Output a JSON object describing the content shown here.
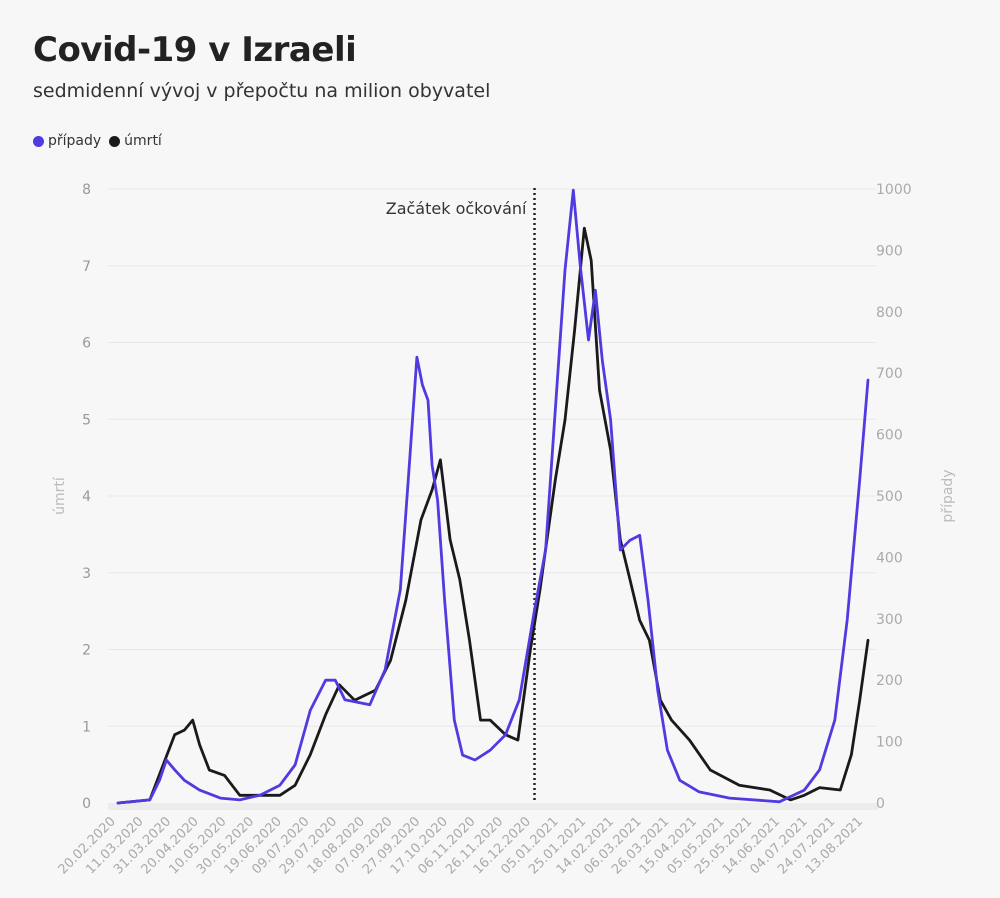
{
  "title": "Covid-19 v Izraeli",
  "subtitle": "sedmidenní vývoj v přepočtu na milion obyvatel",
  "legend": [
    {
      "label": "případy",
      "color": "#4f3be0"
    },
    {
      "label": "úmrtí",
      "color": "#1a1a1a"
    }
  ],
  "chart_data": {
    "type": "line",
    "title": "Covid-19 v Izraeli",
    "subtitle": "sedmidenní vývoj v přepočtu na milion obyvatel",
    "ylabel_left": "úmrtí",
    "ylabel_right": "případy",
    "ylim_left": [
      0,
      8
    ],
    "ylim_right": [
      0,
      1000
    ],
    "yticks_left": [
      "0",
      "1",
      "2",
      "3",
      "4",
      "5",
      "6",
      "7",
      "8"
    ],
    "yticks_right": [
      "0",
      "100",
      "200",
      "300",
      "400",
      "500",
      "600",
      "700",
      "800",
      "900",
      "1000"
    ],
    "xlim": [
      "2020-02-20",
      "2021-08-15"
    ],
    "xticks": [
      "20.02.2020",
      "11.03.2020",
      "31.03.2020",
      "20.04.2020",
      "10.05.2020",
      "30.05.2020",
      "19.06.2020",
      "09.07.2020",
      "29.07.2020",
      "18.08.2020",
      "07.09.2020",
      "27.09.2020",
      "17.10.2020",
      "06.11.2020",
      "26.11.2020",
      "16.12.2020",
      "05.01.2021",
      "25.01.2021",
      "14.02.2021",
      "06.03.2021",
      "26.03.2021",
      "15.04.2021",
      "05.05.2021",
      "25.05.2021",
      "14.06.2021",
      "04.07.2021",
      "24.07.2021",
      "13.08.2021"
    ],
    "grid": true,
    "legend_position": "top-left",
    "annotation": {
      "label": "Začátek očkování",
      "date": "2020-12-17"
    },
    "series": [
      {
        "name": "případy",
        "axis": "right",
        "color": "#4f3be0",
        "x": [
          "2020-02-20",
          "2020-03-14",
          "2020-03-21",
          "2020-03-26",
          "2020-04-01",
          "2020-04-08",
          "2020-04-19",
          "2020-05-04",
          "2020-05-18",
          "2020-06-02",
          "2020-06-16",
          "2020-06-27",
          "2020-07-08",
          "2020-07-19",
          "2020-07-26",
          "2020-08-02",
          "2020-08-20",
          "2020-08-31",
          "2020-09-11",
          "2020-09-17",
          "2020-09-23",
          "2020-09-27",
          "2020-10-01",
          "2020-10-04",
          "2020-10-08",
          "2020-10-13",
          "2020-10-20",
          "2020-10-26",
          "2020-11-04",
          "2020-11-15",
          "2020-11-26",
          "2020-12-06",
          "2020-12-17",
          "2020-12-25",
          "2021-01-01",
          "2021-01-08",
          "2021-01-14",
          "2021-01-19",
          "2021-01-25",
          "2021-01-30",
          "2021-02-04",
          "2021-02-10",
          "2021-02-17",
          "2021-02-24",
          "2021-03-03",
          "2021-03-09",
          "2021-03-16",
          "2021-03-23",
          "2021-04-01",
          "2021-04-15",
          "2021-05-07",
          "2021-06-12",
          "2021-06-30",
          "2021-07-11",
          "2021-07-22",
          "2021-07-31",
          "2021-08-09",
          "2021-08-15"
        ],
        "y": [
          0,
          5,
          37,
          70,
          54,
          37,
          21,
          8,
          5,
          13,
          29,
          62,
          151,
          200,
          200,
          168,
          160,
          217,
          347,
          534,
          726,
          681,
          656,
          550,
          493,
          331,
          135,
          78,
          70,
          86,
          111,
          168,
          314,
          412,
          640,
          868,
          998,
          876,
          754,
          835,
          721,
          624,
          412,
          428,
          436,
          331,
          184,
          86,
          37,
          18,
          8,
          2,
          21,
          54,
          135,
          298,
          526,
          689
        ]
      },
      {
        "name": "úmrtí",
        "axis": "left",
        "color": "#1a1a1a",
        "x": [
          "2020-02-20",
          "2020-03-14",
          "2020-03-25",
          "2020-04-01",
          "2020-04-08",
          "2020-04-14",
          "2020-04-19",
          "2020-04-26",
          "2020-05-07",
          "2020-05-18",
          "2020-06-02",
          "2020-06-16",
          "2020-06-27",
          "2020-07-08",
          "2020-07-19",
          "2020-07-29",
          "2020-08-09",
          "2020-08-24",
          "2020-09-04",
          "2020-09-15",
          "2020-09-26",
          "2020-10-04",
          "2020-10-10",
          "2020-10-17",
          "2020-10-24",
          "2020-10-31",
          "2020-11-08",
          "2020-11-15",
          "2020-11-26",
          "2020-12-05",
          "2020-12-14",
          "2020-12-21",
          "2021-01-01",
          "2021-01-08",
          "2021-01-15",
          "2021-01-22",
          "2021-01-27",
          "2021-02-02",
          "2021-02-10",
          "2021-02-17",
          "2021-02-24",
          "2021-03-03",
          "2021-03-10",
          "2021-03-18",
          "2021-03-26",
          "2021-04-08",
          "2021-04-23",
          "2021-05-14",
          "2021-06-05",
          "2021-06-20",
          "2021-06-30",
          "2021-07-11",
          "2021-07-26",
          "2021-08-03",
          "2021-08-09",
          "2021-08-15"
        ],
        "y": [
          0,
          0.04,
          0.56,
          0.89,
          0.95,
          1.08,
          0.76,
          0.43,
          0.36,
          0.1,
          0.1,
          0.1,
          0.23,
          0.63,
          1.15,
          1.54,
          1.34,
          1.47,
          1.86,
          2.64,
          3.69,
          4.08,
          4.47,
          3.43,
          2.91,
          2.12,
          1.08,
          1.08,
          0.89,
          0.82,
          2.0,
          2.78,
          4.21,
          4.99,
          6.16,
          7.49,
          7.07,
          5.38,
          4.6,
          3.43,
          2.91,
          2.38,
          2.12,
          1.34,
          1.08,
          0.82,
          0.43,
          0.23,
          0.17,
          0.04,
          0.1,
          0.2,
          0.17,
          0.63,
          1.34,
          2.12
        ]
      }
    ]
  }
}
